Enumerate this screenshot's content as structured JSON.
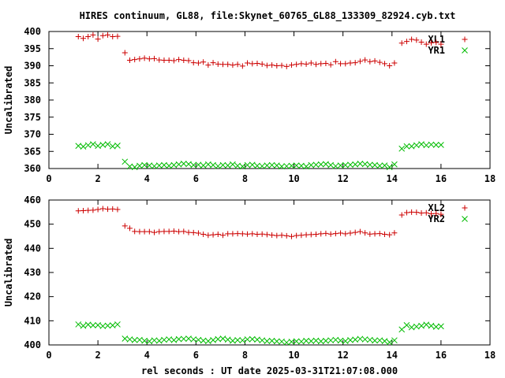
{
  "title": "HIRES continuum, GL88, file:Skynet_60765_GL88_133309_82924.cyb.txt",
  "colors": {
    "red": "#cc0000",
    "green": "#00bb00",
    "frame": "#000000"
  },
  "chart_data": [
    {
      "type": "scatter",
      "xlabel": "",
      "ylabel": "Uncalibrated",
      "xlim": [
        0,
        18
      ],
      "ylim": [
        360,
        400
      ],
      "xticks": [
        "0",
        "2",
        "4",
        "6",
        "8",
        "10",
        "12",
        "14",
        "16",
        "18"
      ],
      "yticks": [
        "360",
        "365",
        "370",
        "375",
        "380",
        "385",
        "390",
        "395",
        "400"
      ],
      "legend_position": "top-right",
      "series": [
        {
          "name": "XL1",
          "marker": "plus",
          "color": "#cc0000",
          "x": [
            1.2,
            1.4,
            1.6,
            1.8,
            2.0,
            2.2,
            2.4,
            2.6,
            2.8,
            3.1,
            3.3,
            3.5,
            3.7,
            3.9,
            4.1,
            4.3,
            4.5,
            4.7,
            4.9,
            5.1,
            5.3,
            5.5,
            5.7,
            5.9,
            6.1,
            6.3,
            6.5,
            6.7,
            6.9,
            7.1,
            7.3,
            7.5,
            7.7,
            7.9,
            8.1,
            8.3,
            8.5,
            8.7,
            8.9,
            9.1,
            9.3,
            9.5,
            9.7,
            9.9,
            10.1,
            10.3,
            10.5,
            10.7,
            10.9,
            11.1,
            11.3,
            11.5,
            11.7,
            11.9,
            12.1,
            12.3,
            12.5,
            12.7,
            12.9,
            13.1,
            13.3,
            13.5,
            13.7,
            13.9,
            14.1,
            14.4,
            14.6,
            14.8,
            15.0,
            15.2,
            15.4,
            15.6,
            15.8,
            16.0
          ],
          "y": [
            398.5,
            398.0,
            398.5,
            399.0,
            397.8,
            398.8,
            399.0,
            398.5,
            398.6,
            393.8,
            391.6,
            391.8,
            392.0,
            392.2,
            392.0,
            392.1,
            391.7,
            391.6,
            391.6,
            391.5,
            391.8,
            391.6,
            391.5,
            390.9,
            390.8,
            391.1,
            390.2,
            390.9,
            390.5,
            390.4,
            390.4,
            390.2,
            390.4,
            389.9,
            390.8,
            390.6,
            390.7,
            390.5,
            390.1,
            390.2,
            390.0,
            390.1,
            389.8,
            390.2,
            390.4,
            390.6,
            390.5,
            390.8,
            390.4,
            390.6,
            390.7,
            390.3,
            391.2,
            390.6,
            390.6,
            390.8,
            390.9,
            391.3,
            391.7,
            391.2,
            391.4,
            391.0,
            390.6,
            390.0,
            390.8,
            396.6,
            397.1,
            397.7,
            397.5,
            396.9,
            396.3,
            396.7,
            396.8,
            396.3
          ]
        },
        {
          "name": "YR1",
          "marker": "cross",
          "color": "#00bb00",
          "x": [
            1.2,
            1.4,
            1.6,
            1.8,
            2.0,
            2.2,
            2.4,
            2.6,
            2.8,
            3.1,
            3.3,
            3.5,
            3.7,
            3.9,
            4.1,
            4.3,
            4.5,
            4.7,
            4.9,
            5.1,
            5.3,
            5.5,
            5.7,
            5.9,
            6.1,
            6.3,
            6.5,
            6.7,
            6.9,
            7.1,
            7.3,
            7.5,
            7.7,
            7.9,
            8.1,
            8.3,
            8.5,
            8.7,
            8.9,
            9.1,
            9.3,
            9.5,
            9.7,
            9.9,
            10.1,
            10.3,
            10.5,
            10.7,
            10.9,
            11.1,
            11.3,
            11.5,
            11.7,
            11.9,
            12.1,
            12.3,
            12.5,
            12.7,
            12.9,
            13.1,
            13.3,
            13.5,
            13.7,
            13.9,
            14.1,
            14.4,
            14.6,
            14.8,
            15.0,
            15.2,
            15.4,
            15.6,
            15.8,
            16.0
          ],
          "y": [
            366.6,
            366.4,
            366.8,
            367.1,
            366.6,
            366.9,
            367.1,
            366.5,
            366.7,
            362.0,
            360.6,
            360.4,
            360.8,
            361.0,
            360.9,
            360.7,
            360.9,
            361.0,
            360.8,
            361.0,
            361.2,
            361.4,
            361.3,
            361.0,
            361.1,
            360.9,
            361.2,
            361.0,
            360.7,
            361.0,
            360.9,
            361.2,
            360.8,
            360.6,
            361.0,
            361.1,
            360.8,
            360.7,
            360.9,
            361.0,
            360.9,
            360.6,
            360.7,
            360.8,
            360.9,
            360.8,
            360.6,
            361.0,
            361.1,
            361.2,
            361.3,
            361.0,
            360.7,
            360.9,
            361.0,
            361.1,
            361.2,
            361.4,
            361.3,
            361.1,
            361.0,
            360.8,
            360.9,
            360.4,
            361.2,
            365.8,
            366.5,
            366.5,
            366.8,
            367.1,
            366.8,
            367.0,
            366.9,
            366.9
          ]
        }
      ]
    },
    {
      "type": "scatter",
      "xlabel": "rel seconds : UT date 2025-03-31T21:07:08.000",
      "ylabel": "Uncalibrated",
      "xlim": [
        0,
        18
      ],
      "ylim": [
        400,
        460
      ],
      "xticks": [
        "0",
        "2",
        "4",
        "6",
        "8",
        "10",
        "12",
        "14",
        "16",
        "18"
      ],
      "yticks": [
        "400",
        "410",
        "420",
        "430",
        "440",
        "450",
        "460"
      ],
      "legend_position": "top-right",
      "series": [
        {
          "name": "XL2",
          "marker": "plus",
          "color": "#cc0000",
          "x": [
            1.2,
            1.4,
            1.6,
            1.8,
            2.0,
            2.2,
            2.4,
            2.6,
            2.8,
            3.1,
            3.3,
            3.5,
            3.7,
            3.9,
            4.1,
            4.3,
            4.5,
            4.7,
            4.9,
            5.1,
            5.3,
            5.5,
            5.7,
            5.9,
            6.1,
            6.3,
            6.5,
            6.7,
            6.9,
            7.1,
            7.3,
            7.5,
            7.7,
            7.9,
            8.1,
            8.3,
            8.5,
            8.7,
            8.9,
            9.1,
            9.3,
            9.5,
            9.7,
            9.9,
            10.1,
            10.3,
            10.5,
            10.7,
            10.9,
            11.1,
            11.3,
            11.5,
            11.7,
            11.9,
            12.1,
            12.3,
            12.5,
            12.7,
            12.9,
            13.1,
            13.3,
            13.5,
            13.7,
            13.9,
            14.1,
            14.4,
            14.6,
            14.8,
            15.0,
            15.2,
            15.4,
            15.6,
            15.8,
            16.0
          ],
          "y": [
            455.5,
            455.6,
            455.7,
            455.8,
            456.1,
            456.4,
            456.2,
            456.3,
            456.1,
            449.3,
            448.3,
            447.0,
            446.9,
            446.9,
            446.9,
            446.6,
            446.9,
            447.0,
            447.0,
            447.1,
            446.9,
            447.0,
            446.6,
            446.5,
            446.3,
            445.8,
            445.4,
            445.6,
            445.8,
            445.4,
            446.0,
            446.0,
            446.1,
            446.0,
            445.9,
            446.0,
            445.8,
            445.9,
            445.7,
            445.5,
            445.3,
            445.4,
            445.2,
            444.9,
            445.3,
            445.4,
            445.6,
            445.7,
            445.8,
            446.0,
            446.2,
            445.9,
            446.1,
            446.3,
            446.0,
            446.3,
            446.6,
            446.9,
            446.4,
            445.9,
            446.0,
            446.1,
            445.8,
            445.6,
            446.4,
            453.8,
            454.8,
            455.0,
            454.9,
            454.6,
            454.7,
            454.3,
            454.4,
            454.1
          ]
        },
        {
          "name": "YR2",
          "marker": "cross",
          "color": "#00bb00",
          "x": [
            1.2,
            1.4,
            1.6,
            1.8,
            2.0,
            2.2,
            2.4,
            2.6,
            2.8,
            3.1,
            3.3,
            3.5,
            3.7,
            3.9,
            4.1,
            4.3,
            4.5,
            4.7,
            4.9,
            5.1,
            5.3,
            5.5,
            5.7,
            5.9,
            6.1,
            6.3,
            6.5,
            6.7,
            6.9,
            7.1,
            7.3,
            7.5,
            7.7,
            7.9,
            8.1,
            8.3,
            8.5,
            8.7,
            8.9,
            9.1,
            9.3,
            9.5,
            9.7,
            9.9,
            10.1,
            10.3,
            10.5,
            10.7,
            10.9,
            11.1,
            11.3,
            11.5,
            11.7,
            11.9,
            12.1,
            12.3,
            12.5,
            12.7,
            12.9,
            13.1,
            13.3,
            13.5,
            13.7,
            13.9,
            14.1,
            14.4,
            14.6,
            14.8,
            15.0,
            15.2,
            15.4,
            15.6,
            15.8,
            16.0
          ],
          "y": [
            408.5,
            407.9,
            408.4,
            408.1,
            408.2,
            407.8,
            408.0,
            408.1,
            408.5,
            402.6,
            402.3,
            402.0,
            402.1,
            401.7,
            401.5,
            401.9,
            401.7,
            402.1,
            402.3,
            402.0,
            402.4,
            402.5,
            402.6,
            402.3,
            402.1,
            401.8,
            401.6,
            402.0,
            402.4,
            402.6,
            402.2,
            401.7,
            402.0,
            401.9,
            402.3,
            402.4,
            402.2,
            401.9,
            401.6,
            401.7,
            401.5,
            401.4,
            401.0,
            401.3,
            401.5,
            401.4,
            401.7,
            401.6,
            401.8,
            401.5,
            401.7,
            401.9,
            402.1,
            401.8,
            401.6,
            402.0,
            402.2,
            402.5,
            402.3,
            402.1,
            401.8,
            401.9,
            401.6,
            401.1,
            401.9,
            406.4,
            408.2,
            407.3,
            407.6,
            407.9,
            408.4,
            407.9,
            407.5,
            407.7
          ]
        }
      ]
    }
  ]
}
